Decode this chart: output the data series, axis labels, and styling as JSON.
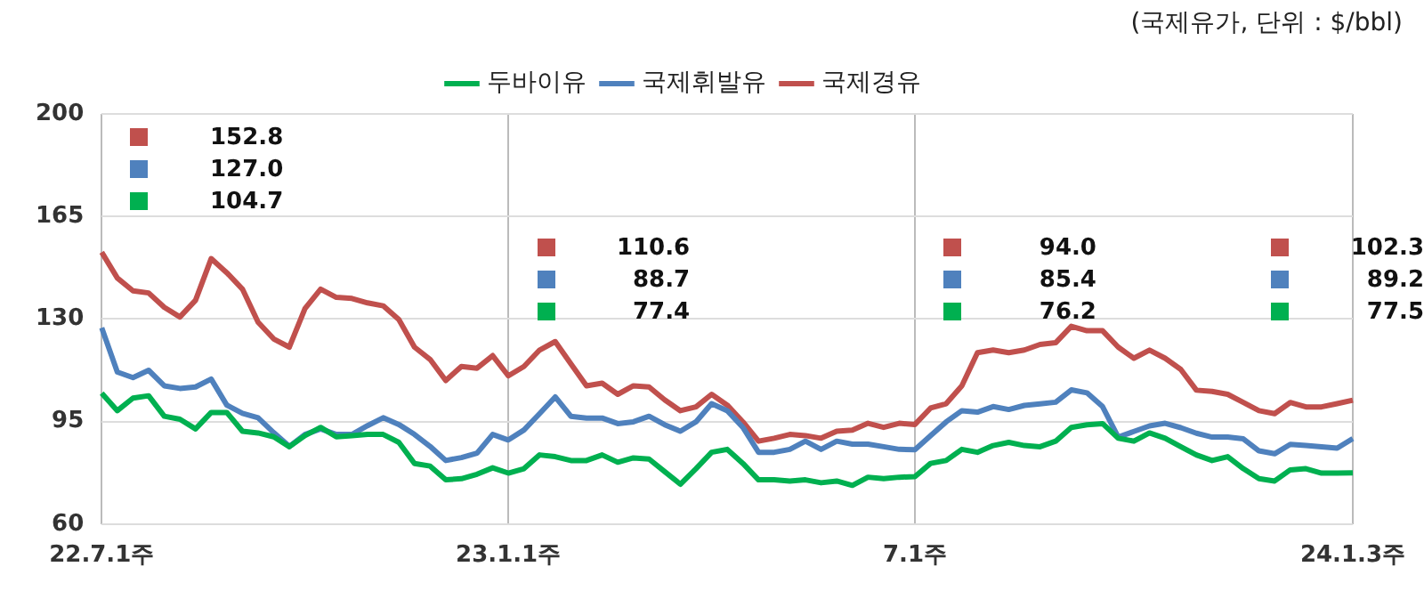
{
  "chart_data": {
    "type": "line",
    "subtitle": "(국제유가, 단위 : $/bbl)",
    "categories": [
      "22.7.1주",
      null,
      null,
      null,
      null,
      null,
      null,
      null,
      null,
      null,
      null,
      null,
      null,
      null,
      null,
      null,
      null,
      null,
      null,
      null,
      null,
      null,
      null,
      null,
      null,
      null,
      "23.1.1주",
      null,
      null,
      null,
      null,
      null,
      null,
      null,
      null,
      null,
      null,
      null,
      null,
      null,
      null,
      null,
      null,
      null,
      null,
      null,
      null,
      null,
      null,
      null,
      null,
      null,
      "7.1주",
      null,
      null,
      null,
      null,
      null,
      null,
      null,
      null,
      null,
      null,
      null,
      null,
      null,
      null,
      null,
      null,
      null,
      null,
      null,
      null,
      null,
      null,
      null,
      null,
      null,
      null,
      null,
      "24.1.3주"
    ],
    "series": [
      {
        "name": "두바이유",
        "color": "#00b050",
        "values": [
          104.7,
          98.7,
          103.0,
          103.8,
          96.8,
          95.8,
          92.5,
          98.1,
          98.1,
          91.7,
          91.1,
          89.8,
          86.4,
          90.2,
          93.0,
          89.8,
          90.2,
          90.6,
          90.6,
          87.9,
          80.7,
          79.8,
          75.1,
          75.5,
          77.0,
          79.2,
          77.4,
          78.9,
          83.6,
          83.0,
          81.7,
          81.7,
          83.6,
          81.1,
          82.6,
          82.2,
          77.9,
          73.6,
          78.9,
          84.5,
          85.5,
          80.7,
          75.1,
          75.1,
          74.7,
          75.1,
          74.1,
          74.7,
          73.2,
          76.0,
          75.5,
          76.0,
          76.2,
          80.7,
          81.7,
          85.5,
          84.5,
          86.8,
          87.9,
          86.8,
          86.4,
          88.3,
          93.0,
          93.9,
          94.3,
          89.3,
          88.3,
          91.1,
          89.3,
          86.4,
          83.6,
          81.7,
          83.0,
          78.9,
          75.5,
          74.7,
          78.5,
          78.9,
          77.4,
          77.4,
          77.5
        ]
      },
      {
        "name": "국제휘발유",
        "color": "#4f81bd",
        "values": [
          127.0,
          111.9,
          110.0,
          112.5,
          107.2,
          106.3,
          106.8,
          109.5,
          100.6,
          97.8,
          96.3,
          91.2,
          86.5,
          90.6,
          92.5,
          90.6,
          90.6,
          93.6,
          96.3,
          94.0,
          90.6,
          86.5,
          81.7,
          82.7,
          84.2,
          90.6,
          88.7,
          92.1,
          97.7,
          103.4,
          96.8,
          96.2,
          96.2,
          94.3,
          94.9,
          96.8,
          93.9,
          91.7,
          94.9,
          101.1,
          98.7,
          93.0,
          84.5,
          84.5,
          85.5,
          88.3,
          85.5,
          88.3,
          87.3,
          87.3,
          86.4,
          85.5,
          85.4,
          90.2,
          94.9,
          98.7,
          98.2,
          100.1,
          99.1,
          100.5,
          101.0,
          101.6,
          105.8,
          104.8,
          100.1,
          89.7,
          91.6,
          93.5,
          94.4,
          92.9,
          91.0,
          89.7,
          89.7,
          89.1,
          85.0,
          84.0,
          87.2,
          86.8,
          86.4,
          85.9,
          89.2
        ]
      },
      {
        "name": "국제경유",
        "color": "#c0504d",
        "values": [
          152.8,
          144.0,
          139.6,
          138.9,
          134.0,
          130.7,
          136.4,
          150.6,
          145.8,
          140.2,
          128.9,
          123.2,
          120.4,
          133.6,
          140.2,
          137.4,
          137.0,
          135.5,
          134.5,
          129.8,
          120.4,
          116.2,
          109.0,
          113.8,
          113.2,
          117.5,
          110.6,
          113.8,
          119.4,
          122.3,
          114.7,
          107.2,
          108.1,
          104.3,
          107.2,
          106.8,
          102.4,
          98.7,
          100.0,
          104.3,
          100.6,
          94.9,
          88.3,
          89.3,
          90.6,
          90.2,
          89.3,
          91.7,
          92.1,
          94.4,
          93.0,
          94.4,
          94.0,
          99.6,
          101.1,
          107.2,
          118.5,
          119.4,
          118.5,
          119.4,
          121.3,
          121.9,
          127.5,
          126.0,
          126.0,
          120.4,
          116.6,
          119.4,
          116.6,
          112.8,
          105.7,
          105.3,
          104.3,
          101.5,
          98.7,
          97.7,
          101.5,
          100.0,
          100.0,
          101.1,
          102.3
        ]
      }
    ],
    "annotations": [
      "152.8",
      "127.0",
      "104.7",
      "110.6",
      "88.7",
      "77.4",
      "94.0",
      "85.4",
      "76.2",
      "102.3",
      "89.2",
      "77.5"
    ],
    "ylim": [
      60,
      200
    ],
    "yticks": [
      60,
      95,
      130,
      165,
      200
    ],
    "grid": true,
    "legend": "top",
    "marker": "none",
    "line_style": "solid"
  }
}
